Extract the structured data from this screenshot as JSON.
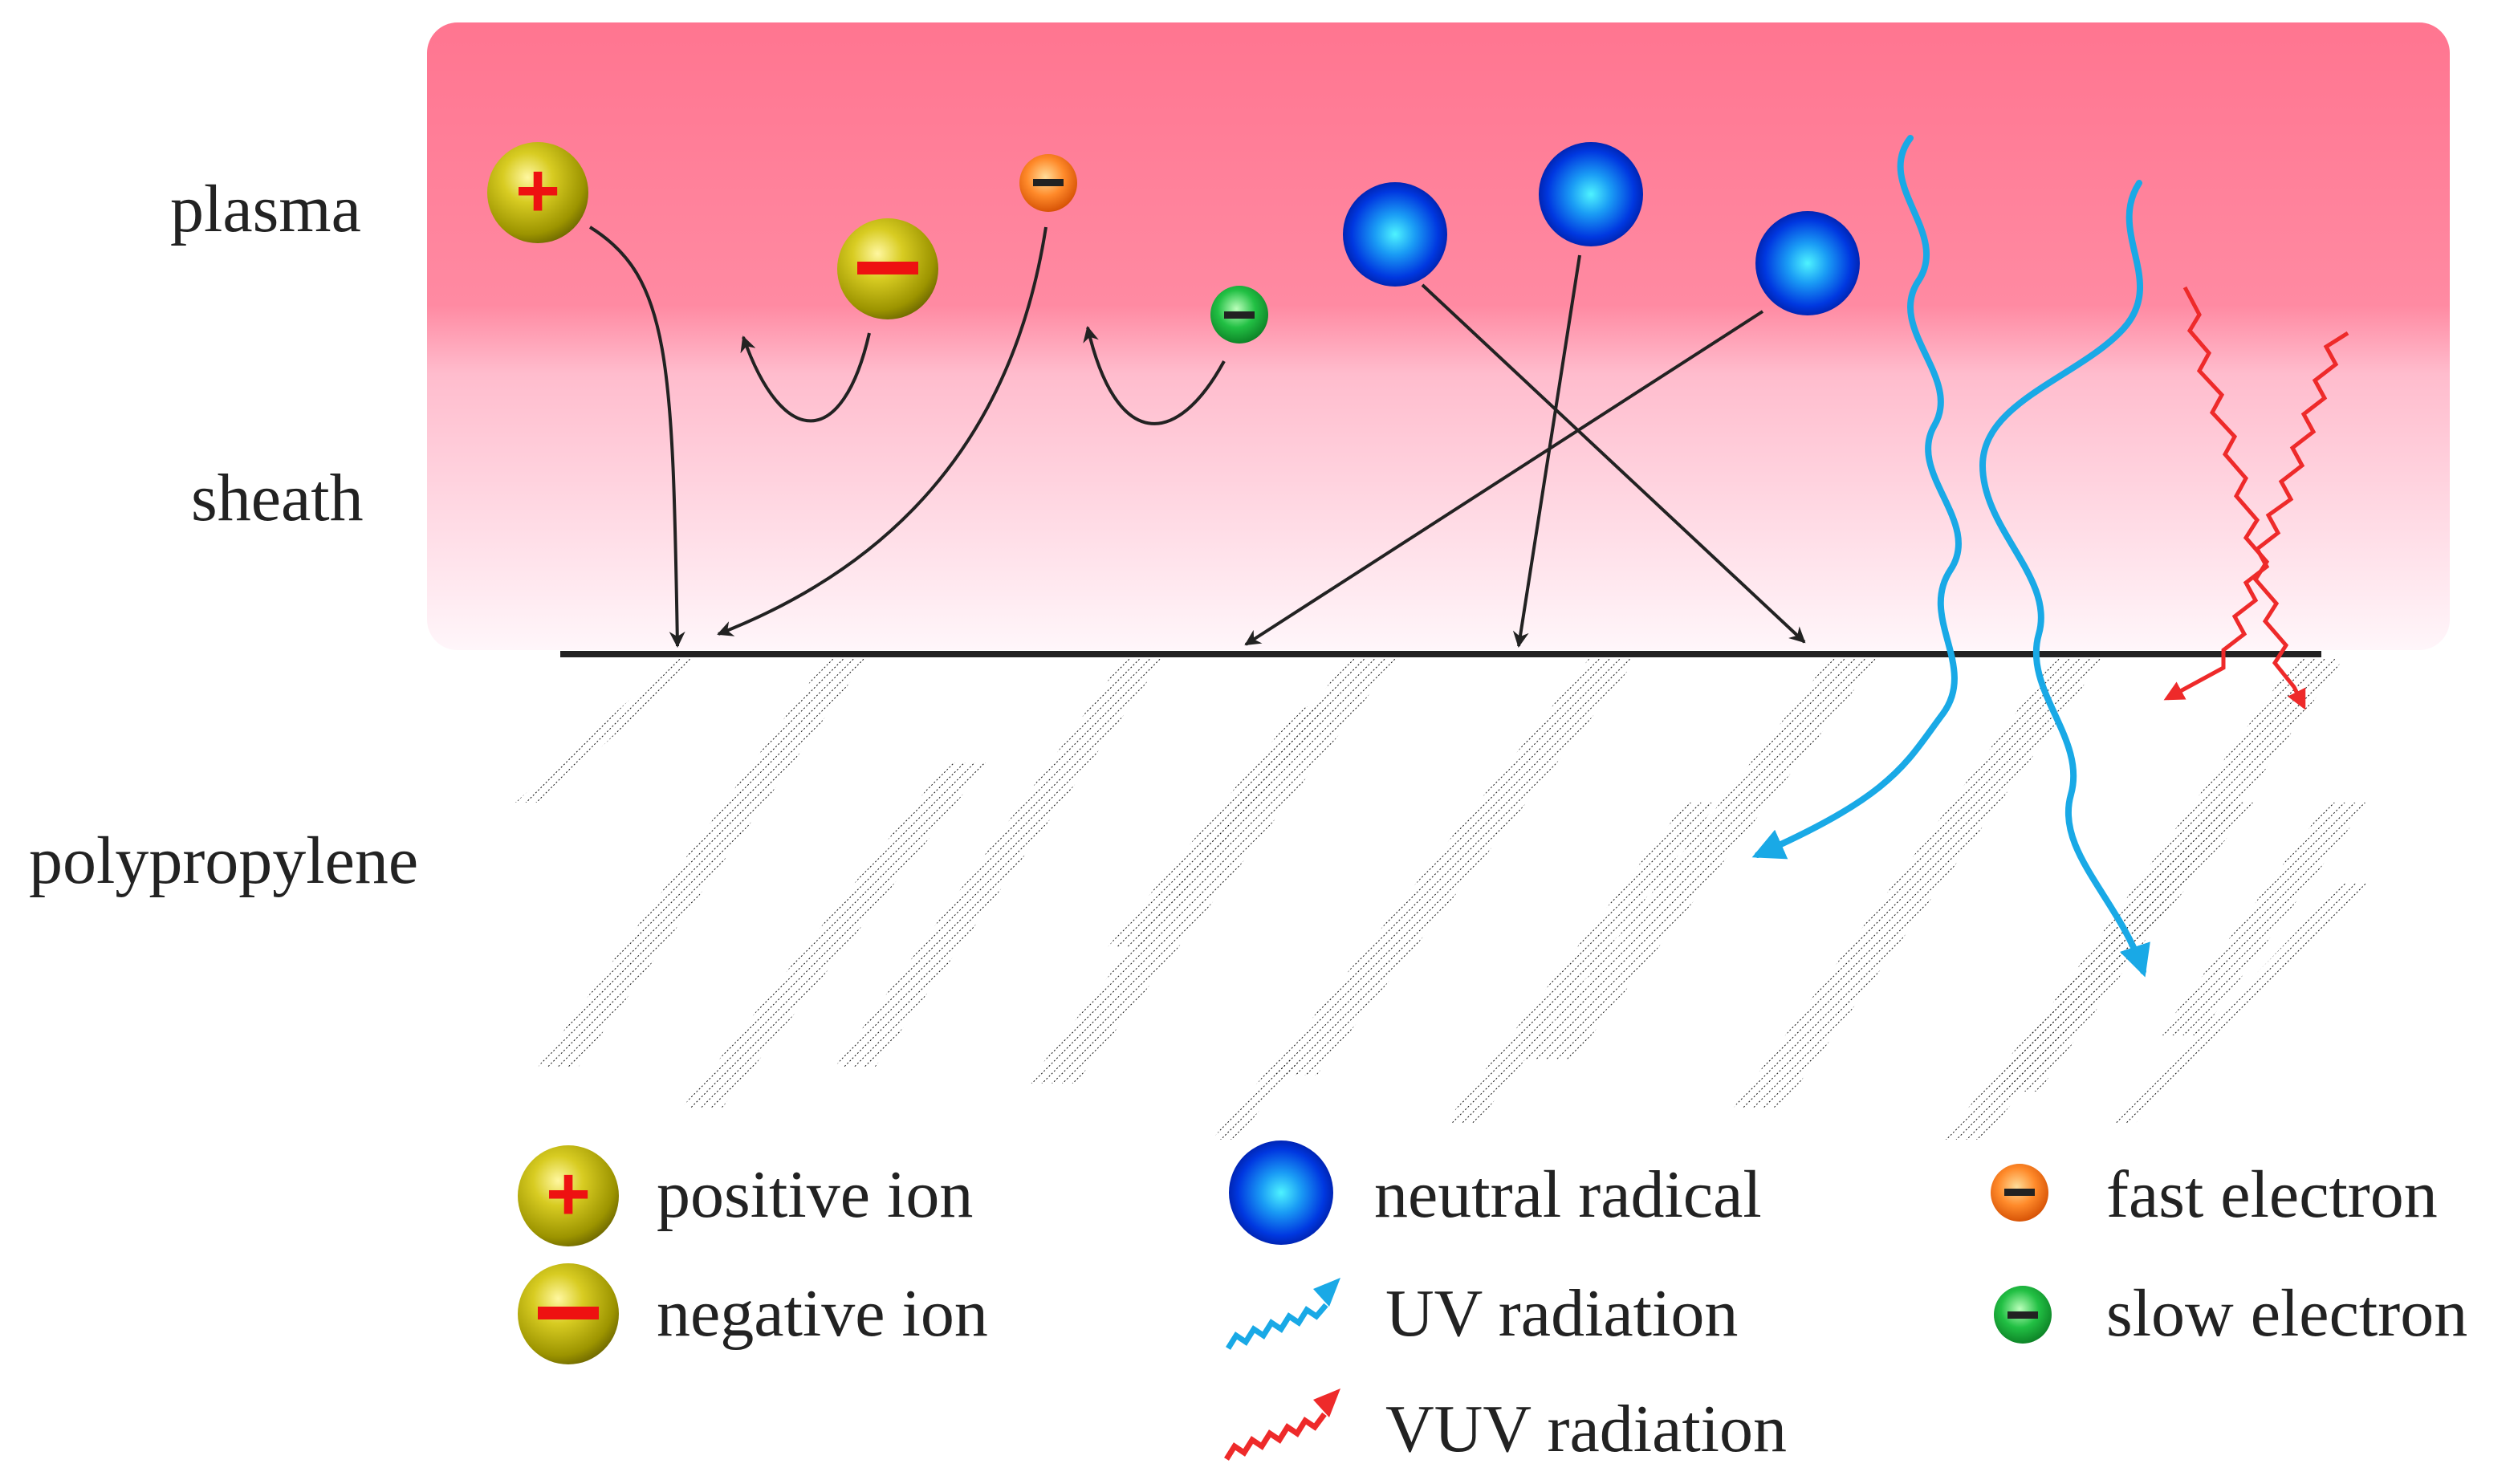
{
  "regions": {
    "plasma": "plasma",
    "sheath": "sheath",
    "polypropylene": "polypropylene"
  },
  "legend": {
    "positive_ion": "positive ion",
    "negative_ion": "negative ion",
    "neutral_radical": "neutral radical",
    "uv_radiation": "UV radiation",
    "vuv_radiation": "VUV radiation",
    "fast_electron": "fast electron",
    "slow_electron": "slow electron"
  },
  "signs": {
    "plus": "+",
    "minus": "−"
  },
  "colors": {
    "plasma_top": "#ff7590",
    "sheath_bottom": "#fff6fa",
    "ion_body": "#9c9400",
    "ion_sign": "#ee1111",
    "radical": "#0033dd",
    "radical_core": "#33ddff",
    "fast_electron": "#ee6611",
    "slow_electron": "#119933",
    "uv": "#19a9e6",
    "vuv": "#ee2a2a",
    "surface": "#222222"
  }
}
